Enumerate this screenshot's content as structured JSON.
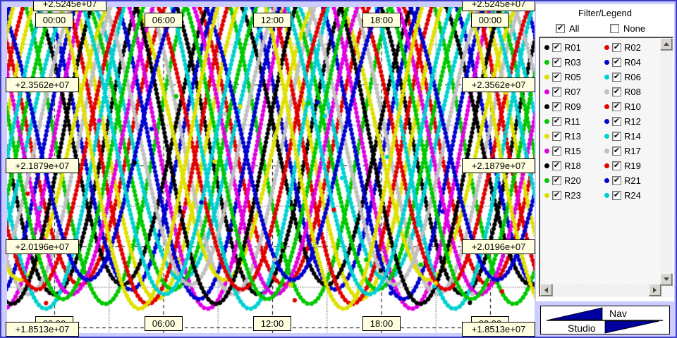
{
  "window": {
    "background": "#CCCCFF",
    "panel_background": "#FFFFFF",
    "label_box_background": "#FFFFDF"
  },
  "chart_data": {
    "type": "line",
    "description": "Satellite range curves versus time of day; 22 GLONASS satellites, clipped parabolic dips repeating with orbital period",
    "x": {
      "major_ticks_top": [
        "00:00",
        "06:00",
        "12:00",
        "18:00",
        "00:00"
      ],
      "major_ticks_bottom": [
        "00:00",
        "06:00",
        "12:00",
        "18:00",
        "00:00"
      ],
      "major_interval_hours": 6,
      "minor_interval_hours": 3,
      "visible_range_hours": [
        -2.6,
        26.4
      ]
    },
    "y": {
      "major_ticks": [
        {
          "label": "+2.5245e+07",
          "value": 25245000
        },
        {
          "label": "+2.3562e+07",
          "value": 23562000
        },
        {
          "label": "+2.1879e+07",
          "value": 21879000
        },
        {
          "label": "+2.0196e+07",
          "value": 20196000
        },
        {
          "label": "+1.8513e+07",
          "value": 18513000
        }
      ],
      "minor_gridlines": true
    },
    "series_model": {
      "period_hours": 11.25,
      "formula": "range(t) = mid_m - amp_m * cos(2*PI*(t - phase_hours)/period_hours)"
    },
    "series": [
      {
        "id": "R01",
        "color": "#000000",
        "phase_hours": 0.0,
        "amp_m": 3300000,
        "mid_m": 22500000,
        "checked": true
      },
      {
        "id": "R02",
        "color": "#E00000",
        "phase_hours": 1.41,
        "amp_m": 3100000,
        "mid_m": 22500000,
        "checked": true
      },
      {
        "id": "R03",
        "color": "#00C800",
        "phase_hours": 2.81,
        "amp_m": 3500000,
        "mid_m": 22500000,
        "checked": true
      },
      {
        "id": "R04",
        "color": "#0000D0",
        "phase_hours": 4.22,
        "amp_m": 3200000,
        "mid_m": 22500000,
        "checked": true
      },
      {
        "id": "R05",
        "color": "#E0E000",
        "phase_hours": 5.63,
        "amp_m": 3400000,
        "mid_m": 22500000,
        "checked": true
      },
      {
        "id": "R06",
        "color": "#00D0D0",
        "phase_hours": 7.03,
        "amp_m": 3000000,
        "mid_m": 22500000,
        "checked": true
      },
      {
        "id": "R07",
        "color": "#E000E0",
        "phase_hours": 8.44,
        "amp_m": 3600000,
        "mid_m": 22500000,
        "checked": true
      },
      {
        "id": "R08",
        "color": "#C0C0C0",
        "phase_hours": 9.84,
        "amp_m": 3300000,
        "mid_m": 22500000,
        "checked": true
      },
      {
        "id": "R09",
        "color": "#000000",
        "phase_hours": 3.75,
        "amp_m": 3100000,
        "mid_m": 22500000,
        "checked": true
      },
      {
        "id": "R10",
        "color": "#E00000",
        "phase_hours": 5.16,
        "amp_m": 3500000,
        "mid_m": 22500000,
        "checked": true
      },
      {
        "id": "R11",
        "color": "#00C800",
        "phase_hours": 6.56,
        "amp_m": 3200000,
        "mid_m": 22500000,
        "checked": true
      },
      {
        "id": "R12",
        "color": "#0000D0",
        "phase_hours": 7.97,
        "amp_m": 3400000,
        "mid_m": 22500000,
        "checked": true
      },
      {
        "id": "R13",
        "color": "#E0E000",
        "phase_hours": 9.38,
        "amp_m": 3000000,
        "mid_m": 22500000,
        "checked": true
      },
      {
        "id": "R14",
        "color": "#00D0D0",
        "phase_hours": 10.78,
        "amp_m": 3600000,
        "mid_m": 22500000,
        "checked": true
      },
      {
        "id": "R15",
        "color": "#E000E0",
        "phase_hours": 0.94,
        "amp_m": 3300000,
        "mid_m": 22500000,
        "checked": true
      },
      {
        "id": "R17",
        "color": "#C0C0C0",
        "phase_hours": 7.5,
        "amp_m": 3100000,
        "mid_m": 22500000,
        "checked": true
      },
      {
        "id": "R18",
        "color": "#000000",
        "phase_hours": 8.91,
        "amp_m": 3500000,
        "mid_m": 22500000,
        "checked": true
      },
      {
        "id": "R19",
        "color": "#E00000",
        "phase_hours": 10.31,
        "amp_m": 3200000,
        "mid_m": 22500000,
        "checked": true
      },
      {
        "id": "R20",
        "color": "#00C800",
        "phase_hours": 0.47,
        "amp_m": 3400000,
        "mid_m": 22500000,
        "checked": true
      },
      {
        "id": "R21",
        "color": "#0000D0",
        "phase_hours": 1.88,
        "amp_m": 3000000,
        "mid_m": 22500000,
        "checked": true
      },
      {
        "id": "R23",
        "color": "#E0E000",
        "phase_hours": 4.69,
        "amp_m": 3600000,
        "mid_m": 22500000,
        "checked": true
      },
      {
        "id": "R24",
        "color": "#00D0D0",
        "phase_hours": 6.09,
        "amp_m": 3300000,
        "mid_m": 22500000,
        "checked": true
      }
    ]
  },
  "filter_legend": {
    "title": "Filter/Legend",
    "all_label": "All",
    "all_checked": true,
    "none_label": "None",
    "none_checked": false
  },
  "logo": {
    "top_text": "Nav",
    "bottom_text": "Studio",
    "triangle_color": "#0000A0"
  }
}
